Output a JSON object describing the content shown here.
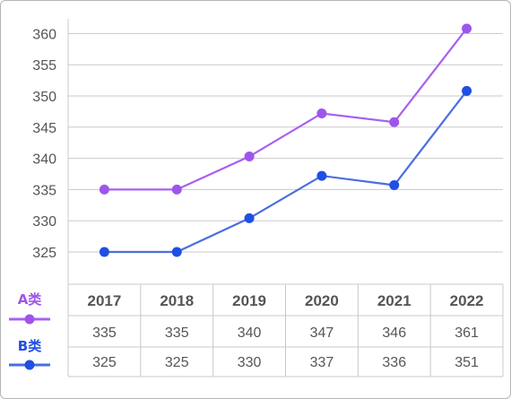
{
  "chart_data": {
    "type": "line",
    "categories": [
      "2017",
      "2018",
      "2019",
      "2020",
      "2021",
      "2022"
    ],
    "series": [
      {
        "name": "A类",
        "values": [
          335,
          335,
          340,
          347,
          346,
          361
        ],
        "plotted": [
          335,
          335,
          340.3,
          347.2,
          345.8,
          360.8
        ],
        "color": "#a860f0",
        "markerColor": "#9e55ec"
      },
      {
        "name": "B类",
        "values": [
          325,
          325,
          330,
          337,
          336,
          351
        ],
        "plotted": [
          325,
          325,
          330.4,
          337.2,
          335.7,
          350.8
        ],
        "color": "#4a6ee0",
        "markerColor": "#1f4fe3"
      }
    ],
    "yticks": [
      325,
      330,
      335,
      340,
      345,
      350,
      355,
      360
    ],
    "ylim": [
      320,
      362
    ],
    "grid": true,
    "legend": "bottom-left",
    "title": "",
    "xlabel": "",
    "ylabel": ""
  }
}
